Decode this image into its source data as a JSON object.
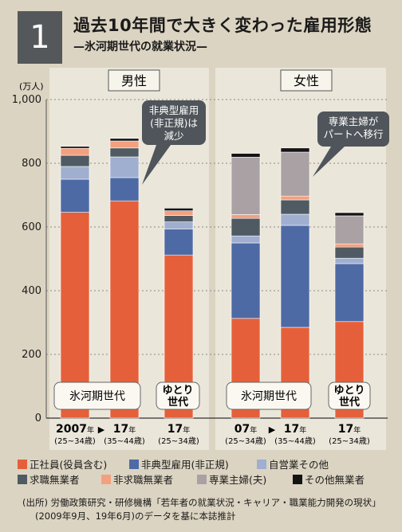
{
  "header": {
    "number": "1",
    "title": "過去10年間で大きく変わった雇用形態",
    "subtitle": "—氷河期世代の就業状況—"
  },
  "chart_data": {
    "type": "bar",
    "stacked": true,
    "unit_label": "(万人)",
    "ylim": [
      0,
      1000
    ],
    "yticks": [
      "0",
      "200",
      "400",
      "600",
      "800",
      "1,000"
    ],
    "grid": true,
    "panels": [
      {
        "label": "男性",
        "categories": [
          {
            "year": "2007",
            "year_suffix": "年",
            "age": "(25~34歳)"
          },
          {
            "year": "17",
            "year_suffix": "年",
            "age": "(35~44歳)"
          },
          {
            "year": "17",
            "year_suffix": "年",
            "age": "(25~34歳)"
          }
        ],
        "values": [
          [
            646,
            104,
            40,
            35,
            22,
            0,
            6
          ],
          [
            682,
            73,
            65,
            28,
            22,
            0,
            8
          ],
          [
            512,
            82,
            22,
            20,
            15,
            0,
            8
          ]
        ],
        "group_labels": [
          "氷河期世代",
          "ゆとり\n世代"
        ]
      },
      {
        "label": "女性",
        "categories": [
          {
            "year": "07",
            "year_suffix": "年",
            "age": "(25~34歳)"
          },
          {
            "year": "17",
            "year_suffix": "年",
            "age": "(35~44歳)"
          },
          {
            "year": "17",
            "year_suffix": "年",
            "age": "(25~34歳)"
          }
        ],
        "values": [
          [
            313,
            237,
            22,
            55,
            12,
            180,
            12
          ],
          [
            285,
            320,
            35,
            45,
            12,
            138,
            13
          ],
          [
            303,
            182,
            17,
            35,
            10,
            88,
            10
          ]
        ],
        "group_labels": [
          "氷河期世代",
          "ゆとり\n世代"
        ]
      }
    ],
    "series": [
      {
        "name": "正社員(役員含む)",
        "color": "#e5603a"
      },
      {
        "name": "非典型雇用(非正規)",
        "color": "#4e6aa5"
      },
      {
        "name": "自営業その他",
        "color": "#a0aecf"
      },
      {
        "name": "求職無業者",
        "color": "#505a62"
      },
      {
        "name": "非求職無業者",
        "color": "#f3a07e"
      },
      {
        "name": "専業主婦(夫)",
        "color": "#a9a1a3"
      },
      {
        "name": "その他無業者",
        "color": "#141414"
      }
    ],
    "arrow_glyph": "▶",
    "annotations": [
      {
        "text": "非典型雇用\n(非正規)は\n減少"
      },
      {
        "text": "専業主婦が\nパートへ移行"
      }
    ]
  },
  "source": {
    "line1": "(出所) 労働政策研究・研修機構「若年者の就業状況・キャリア・職業能力開発の現状」",
    "line2": "(2009年9月、19年6月)のデータを基に本誌推計"
  }
}
